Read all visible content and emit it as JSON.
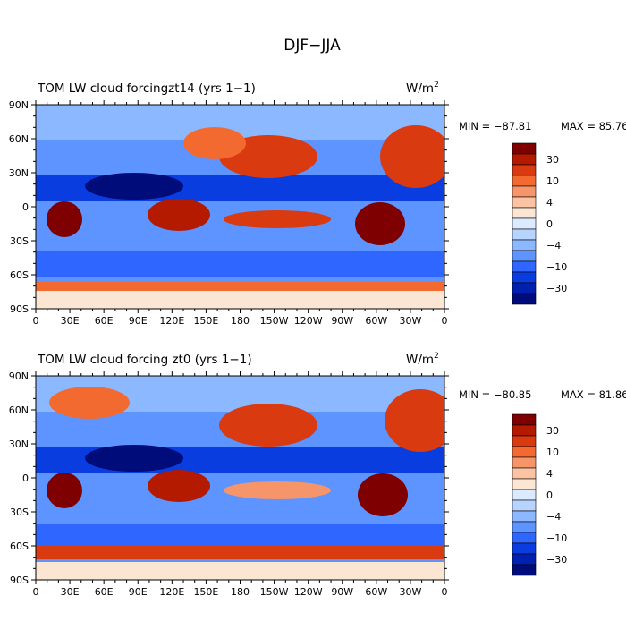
{
  "page_title": "DJF−JJA",
  "colorbar_labels": [
    "30",
    "10",
    "4",
    "0",
    "−4",
    "−10",
    "−30"
  ],
  "colorbar_colors": [
    "#7f0000",
    "#b31a00",
    "#d93a10",
    "#f26a30",
    "#f7956a",
    "#fac3a3",
    "#fbe6d4",
    "#dceaff",
    "#b7d4ff",
    "#8cb8ff",
    "#5d94ff",
    "#2f66ff",
    "#0a3de0",
    "#0020b0",
    "#000c7a"
  ],
  "chart_data": [
    {
      "type": "heatmap",
      "title": "TOM LW cloud forcingzt14 (yrs 1−1)",
      "units_main": "W/m",
      "units_exp": "2",
      "min_text": "MIN = −87.81",
      "max_text": "MAX =  85.76",
      "min": -87.81,
      "max": 85.76,
      "x_ticks": [
        "0",
        "30E",
        "60E",
        "90E",
        "120E",
        "150E",
        "180",
        "150W",
        "120W",
        "90W",
        "60W",
        "30W",
        "0"
      ],
      "y_ticks": [
        "90N",
        "60N",
        "30N",
        "0",
        "30S",
        "60S",
        "90S"
      ]
    },
    {
      "type": "heatmap",
      "title": "TOM LW cloud forcing zt0 (yrs 1−1)",
      "units_main": "W/m",
      "units_exp": "2",
      "min_text": "MIN = −80.85",
      "max_text": "MAX =  81.86",
      "min": -80.85,
      "max": 81.86,
      "x_ticks": [
        "0",
        "30E",
        "60E",
        "90E",
        "120E",
        "150E",
        "180",
        "150W",
        "120W",
        "90W",
        "60W",
        "30W",
        "0"
      ],
      "y_ticks": [
        "90N",
        "60N",
        "30N",
        "0",
        "30S",
        "60S",
        "90S"
      ]
    }
  ]
}
